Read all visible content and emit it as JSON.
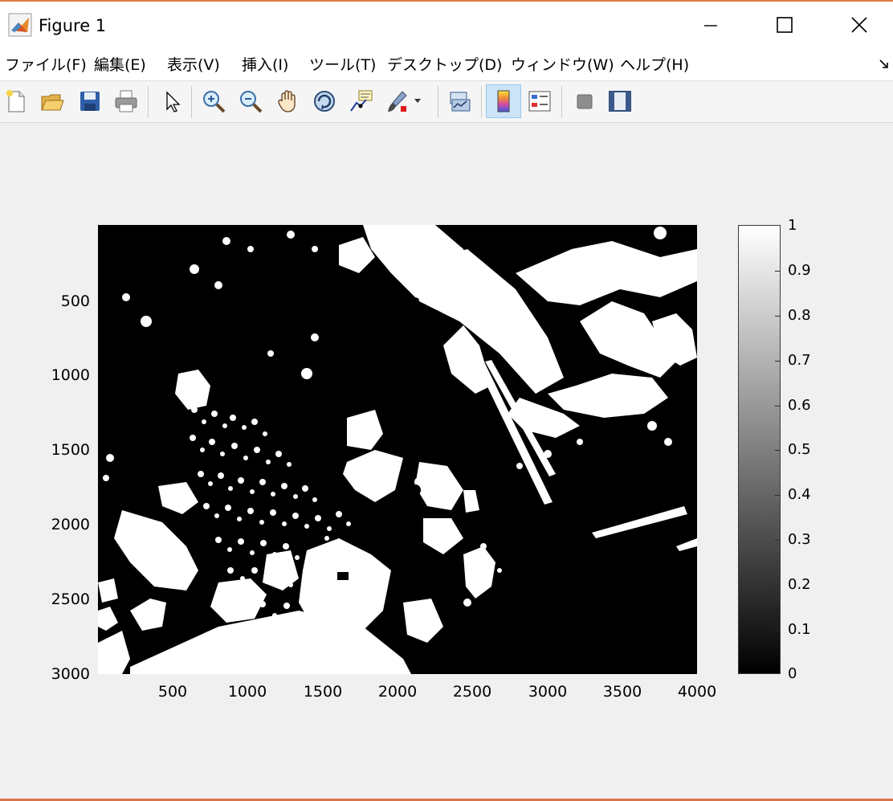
{
  "window": {
    "title": "Figure 1"
  },
  "menu": [
    "ファイル(F)",
    "編集(E)",
    "表示(V)",
    "挿入(I)",
    "ツール(T)",
    "デスクトップ(D)",
    "ウィンドウ(W)",
    "ヘルプ(H)"
  ],
  "toolbar": [
    {
      "name": "new-figure-icon"
    },
    {
      "name": "open-file-icon"
    },
    {
      "name": "save-icon"
    },
    {
      "name": "print-icon"
    },
    {
      "name": "edit-plot-arrow-icon"
    },
    {
      "name": "zoom-in-icon"
    },
    {
      "name": "zoom-out-icon"
    },
    {
      "name": "pan-hand-icon"
    },
    {
      "name": "rotate-3d-icon"
    },
    {
      "name": "data-cursor-icon"
    },
    {
      "name": "brush-icon"
    },
    {
      "name": "link-plot-icon"
    },
    {
      "name": "insert-colorbar-icon",
      "active": true
    },
    {
      "name": "insert-legend-icon"
    },
    {
      "name": "hide-plot-tools-icon"
    },
    {
      "name": "show-plot-tools-icon"
    }
  ],
  "axes": {
    "y_ticks": [
      "500",
      "1000",
      "1500",
      "2000",
      "2500",
      "3000"
    ],
    "x_ticks": [
      "500",
      "1000",
      "1500",
      "2000",
      "2500",
      "3000",
      "3500",
      "4000"
    ]
  },
  "colorbar": {
    "ticks": [
      "1",
      "0.9",
      "0.8",
      "0.7",
      "0.6",
      "0.5",
      "0.4",
      "0.3",
      "0.2",
      "0.1",
      "0"
    ],
    "colormap": "gray",
    "range": [
      0,
      1
    ]
  },
  "colors": {
    "titlebar_bg": "#ffffff",
    "figure_bg": "#f0f0f0",
    "active_tool_bg": "#cce4f7",
    "image_background": "#000000",
    "image_foreground": "#ffffff"
  }
}
